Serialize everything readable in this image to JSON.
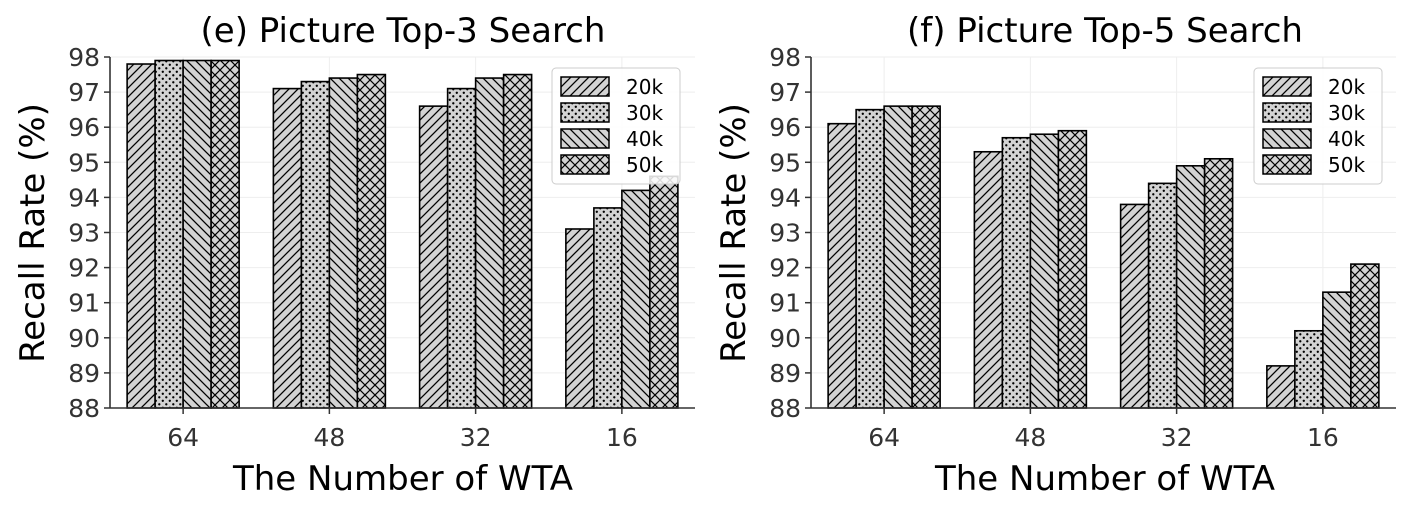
{
  "chart_data": [
    {
      "type": "bar",
      "title": "(e) Picture Top-3 Search",
      "xlabel": "The Number of WTA",
      "ylabel": "Recall Rate (%)",
      "categories": [
        "64",
        "48",
        "32",
        "16"
      ],
      "ylim": [
        88,
        98
      ],
      "yticks": [
        "88",
        "89",
        "90",
        "91",
        "92",
        "93",
        "94",
        "95",
        "96",
        "97",
        "98"
      ],
      "grid": true,
      "legend_position": "top-right",
      "series": [
        {
          "name": "20k",
          "hatch": "diag-fwd",
          "values": [
            97.8,
            97.1,
            96.6,
            93.1
          ]
        },
        {
          "name": "30k",
          "hatch": "dots",
          "values": [
            97.9,
            97.3,
            97.1,
            93.7
          ]
        },
        {
          "name": "40k",
          "hatch": "diag-back",
          "values": [
            97.9,
            97.4,
            97.4,
            94.2
          ]
        },
        {
          "name": "50k",
          "hatch": "cross",
          "values": [
            97.9,
            97.5,
            97.5,
            94.6
          ]
        }
      ]
    },
    {
      "type": "bar",
      "title": "(f) Picture Top-5 Search",
      "xlabel": "The Number of WTA",
      "ylabel": "Recall Rate (%)",
      "categories": [
        "64",
        "48",
        "32",
        "16"
      ],
      "ylim": [
        88,
        98
      ],
      "yticks": [
        "88",
        "89",
        "90",
        "91",
        "92",
        "93",
        "94",
        "95",
        "96",
        "97",
        "98"
      ],
      "grid": true,
      "legend_position": "top-right",
      "series": [
        {
          "name": "20k",
          "hatch": "diag-fwd",
          "values": [
            96.1,
            95.3,
            93.8,
            89.2
          ]
        },
        {
          "name": "30k",
          "hatch": "dots",
          "values": [
            96.5,
            95.7,
            94.4,
            90.2
          ]
        },
        {
          "name": "40k",
          "hatch": "diag-back",
          "values": [
            96.6,
            95.8,
            94.9,
            91.3
          ]
        },
        {
          "name": "50k",
          "hatch": "cross",
          "values": [
            96.6,
            95.9,
            95.1,
            92.1
          ]
        }
      ]
    }
  ],
  "colors": {
    "bar_fill": "#d3d3d3",
    "bar_edge": "#000000",
    "grid": "#eeeeee",
    "axis": "#333333"
  }
}
